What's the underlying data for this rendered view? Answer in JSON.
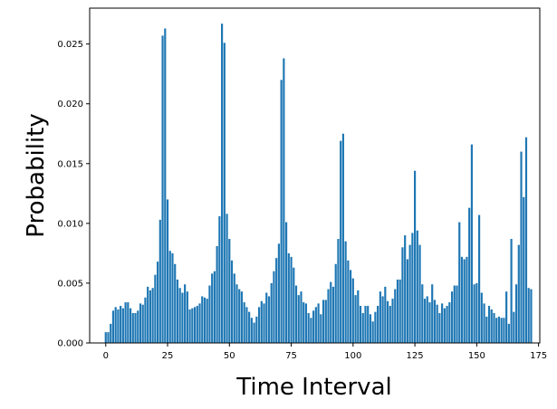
{
  "chart_data": {
    "type": "bar",
    "title": "",
    "xlabel": "Time Interval",
    "ylabel": "Probability",
    "xlim": [
      -6.5,
      175.5
    ],
    "ylim": [
      0.0,
      0.028
    ],
    "xticks": [
      0,
      25,
      50,
      75,
      100,
      125,
      150,
      175
    ],
    "yticks": [
      0.0,
      0.005,
      0.01,
      0.015,
      0.02,
      0.025
    ],
    "ytick_labels": [
      "0.000",
      "0.005",
      "0.010",
      "0.015",
      "0.020",
      "0.025"
    ],
    "grid": false,
    "legend": "none",
    "color": "#1f77b4",
    "x_start": 0,
    "values": [
      0.0009,
      0.0009,
      0.0016,
      0.0027,
      0.003,
      0.0028,
      0.0031,
      0.0029,
      0.0034,
      0.0034,
      0.0029,
      0.0025,
      0.0025,
      0.0027,
      0.0033,
      0.0032,
      0.0038,
      0.0047,
      0.0044,
      0.0046,
      0.0057,
      0.0068,
      0.0103,
      0.0257,
      0.0263,
      0.012,
      0.0077,
      0.0075,
      0.0066,
      0.0053,
      0.0046,
      0.0042,
      0.0049,
      0.0043,
      0.0028,
      0.0029,
      0.003,
      0.0031,
      0.0033,
      0.0039,
      0.0038,
      0.0037,
      0.0048,
      0.0058,
      0.006,
      0.0081,
      0.0106,
      0.0267,
      0.0251,
      0.0108,
      0.0087,
      0.0069,
      0.0058,
      0.0049,
      0.0045,
      0.0043,
      0.0034,
      0.003,
      0.0026,
      0.0021,
      0.0017,
      0.0022,
      0.003,
      0.0035,
      0.0033,
      0.0042,
      0.0039,
      0.005,
      0.006,
      0.0071,
      0.0083,
      0.022,
      0.0238,
      0.0101,
      0.0075,
      0.0072,
      0.0063,
      0.0048,
      0.004,
      0.0043,
      0.0034,
      0.0033,
      0.0025,
      0.0021,
      0.0027,
      0.003,
      0.0033,
      0.0024,
      0.0036,
      0.0036,
      0.0045,
      0.0051,
      0.0047,
      0.0066,
      0.0087,
      0.0169,
      0.0175,
      0.0085,
      0.0069,
      0.0061,
      0.0054,
      0.004,
      0.0044,
      0.0031,
      0.0025,
      0.0031,
      0.0031,
      0.0024,
      0.0018,
      0.0026,
      0.0031,
      0.0043,
      0.0039,
      0.0047,
      0.0035,
      0.0031,
      0.0037,
      0.0045,
      0.0053,
      0.0053,
      0.008,
      0.009,
      0.007,
      0.0082,
      0.0092,
      0.0144,
      0.0094,
      0.0082,
      0.0049,
      0.0037,
      0.0039,
      0.0034,
      0.0049,
      0.0036,
      0.0032,
      0.0025,
      0.0033,
      0.0029,
      0.0031,
      0.0034,
      0.0043,
      0.0048,
      0.0048,
      0.0101,
      0.0072,
      0.007,
      0.0072,
      0.0113,
      0.0166,
      0.0049,
      0.005,
      0.0107,
      0.0042,
      0.0033,
      0.0022,
      0.0031,
      0.0028,
      0.0025,
      0.0021,
      0.0022,
      0.0021,
      0.0021,
      0.0043,
      0.0016,
      0.0087,
      0.0026,
      0.0049,
      0.0082,
      0.016,
      0.0122,
      0.0172,
      0.0046,
      0.0045
    ]
  }
}
